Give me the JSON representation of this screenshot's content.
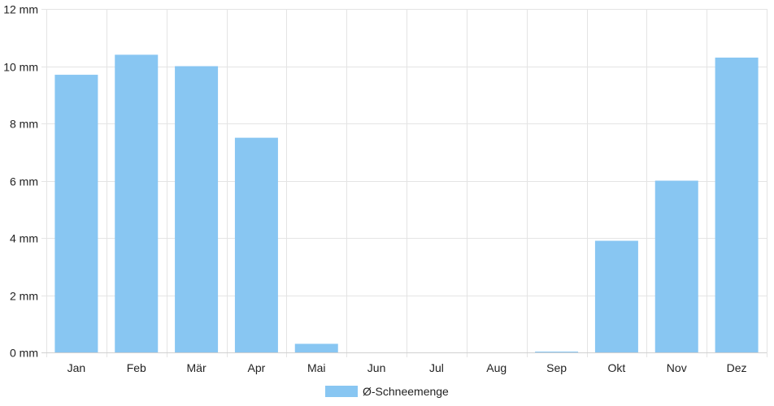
{
  "chart_data": {
    "type": "bar",
    "categories": [
      "Jan",
      "Feb",
      "Mär",
      "Apr",
      "Mai",
      "Jun",
      "Jul",
      "Aug",
      "Sep",
      "Okt",
      "Nov",
      "Dez"
    ],
    "series": [
      {
        "name": "Ø-Schneemenge",
        "values": [
          9.7,
          10.4,
          10.0,
          7.5,
          0.3,
          0,
          0,
          0,
          0.01,
          3.9,
          6.0,
          10.3
        ],
        "color": "#88c6f2"
      }
    ],
    "title": "",
    "xlabel": "",
    "ylabel": "",
    "ylim": [
      0,
      12
    ],
    "yticks": [
      0,
      2,
      4,
      6,
      8,
      10,
      12
    ],
    "ytick_labels": [
      "0 mm",
      "2 mm",
      "4 mm",
      "6 mm",
      "8 mm",
      "10 mm",
      "12 mm"
    ],
    "grid": true,
    "legend": {
      "position": "bottom-center"
    }
  }
}
